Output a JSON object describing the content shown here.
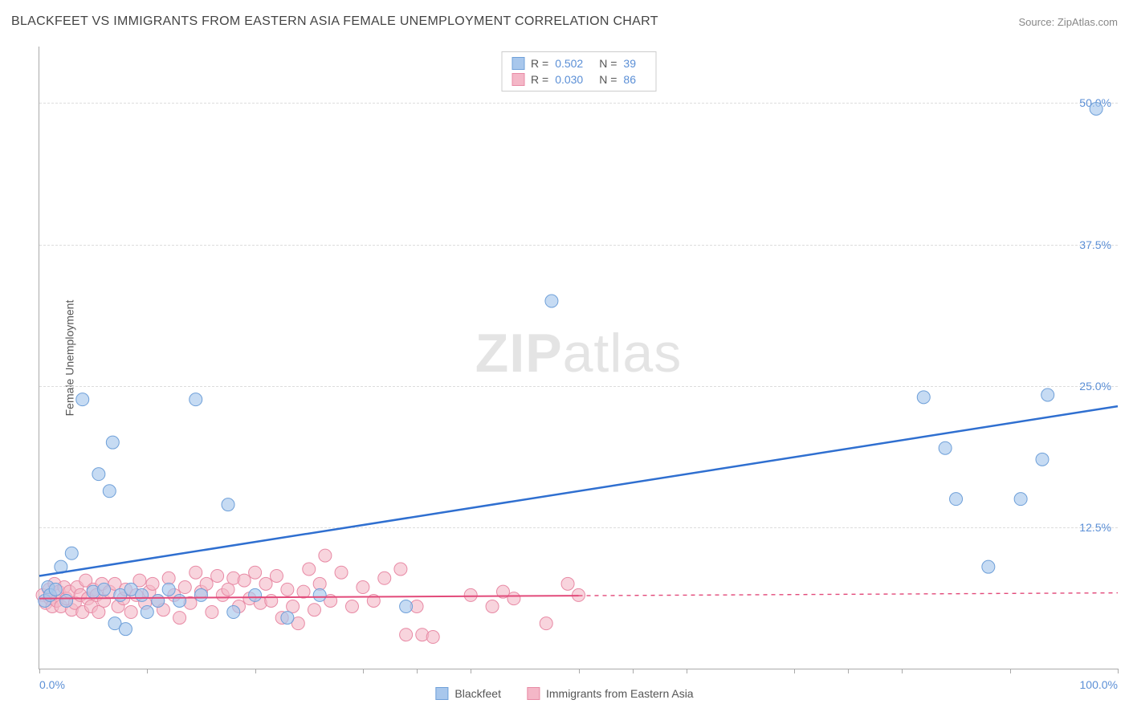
{
  "title": "BLACKFEET VS IMMIGRANTS FROM EASTERN ASIA FEMALE UNEMPLOYMENT CORRELATION CHART",
  "source": "Source: ZipAtlas.com",
  "ylabel": "Female Unemployment",
  "watermark_zip": "ZIP",
  "watermark_atlas": "atlas",
  "chart": {
    "type": "scatter",
    "background_color": "#ffffff",
    "grid_color": "#dddddd",
    "axis_color": "#aaaaaa",
    "xlim": [
      0,
      100
    ],
    "ylim": [
      0,
      55
    ],
    "xtick_positions": [
      0,
      10,
      20,
      30,
      35,
      40,
      50,
      55,
      60,
      70,
      75,
      80,
      90,
      100
    ],
    "xtick_labels": [
      {
        "pos": 0,
        "label": "0.0%"
      },
      {
        "pos": 100,
        "label": "100.0%"
      }
    ],
    "ytick_gridlines": [
      12.5,
      25.0,
      37.5,
      50.0
    ],
    "ytick_labels": [
      "12.5%",
      "25.0%",
      "37.5%",
      "50.0%"
    ],
    "tick_label_color": "#5b8fd6",
    "tick_label_fontsize": 14
  },
  "series": {
    "blue": {
      "name": "Blackfeet",
      "fill_color": "#a8c7ec",
      "fill_opacity": 0.65,
      "stroke_color": "#6fa0d9",
      "marker_radius": 8,
      "R_label": "R =",
      "R_value": "0.502",
      "N_label": "N =",
      "N_value": "39",
      "regression": {
        "x1": 0,
        "y1": 8.2,
        "x2": 100,
        "y2": 23.2,
        "color": "#2f6fd0",
        "width": 2.5,
        "dash_after_x": null
      },
      "points": [
        {
          "x": 0.5,
          "y": 6.0
        },
        {
          "x": 0.8,
          "y": 7.2
        },
        {
          "x": 1.0,
          "y": 6.5
        },
        {
          "x": 1.5,
          "y": 7.0
        },
        {
          "x": 2.0,
          "y": 9.0
        },
        {
          "x": 2.5,
          "y": 6.0
        },
        {
          "x": 3.0,
          "y": 10.2
        },
        {
          "x": 4.0,
          "y": 23.8
        },
        {
          "x": 5.0,
          "y": 6.8
        },
        {
          "x": 5.5,
          "y": 17.2
        },
        {
          "x": 6.0,
          "y": 7.0
        },
        {
          "x": 6.5,
          "y": 15.7
        },
        {
          "x": 6.8,
          "y": 20.0
        },
        {
          "x": 7.0,
          "y": 4.0
        },
        {
          "x": 7.5,
          "y": 6.5
        },
        {
          "x": 8.0,
          "y": 3.5
        },
        {
          "x": 8.5,
          "y": 7.0
        },
        {
          "x": 9.5,
          "y": 6.5
        },
        {
          "x": 10.0,
          "y": 5.0
        },
        {
          "x": 11.0,
          "y": 6.0
        },
        {
          "x": 12.0,
          "y": 7.0
        },
        {
          "x": 13.0,
          "y": 6.0
        },
        {
          "x": 14.5,
          "y": 23.8
        },
        {
          "x": 15.0,
          "y": 6.5
        },
        {
          "x": 17.5,
          "y": 14.5
        },
        {
          "x": 18.0,
          "y": 5.0
        },
        {
          "x": 20.0,
          "y": 6.5
        },
        {
          "x": 23.0,
          "y": 4.5
        },
        {
          "x": 26.0,
          "y": 6.5
        },
        {
          "x": 34.0,
          "y": 5.5
        },
        {
          "x": 47.5,
          "y": 32.5
        },
        {
          "x": 82.0,
          "y": 24.0
        },
        {
          "x": 84.0,
          "y": 19.5
        },
        {
          "x": 85.0,
          "y": 15.0
        },
        {
          "x": 88.0,
          "y": 9.0
        },
        {
          "x": 91.0,
          "y": 15.0
        },
        {
          "x": 93.0,
          "y": 18.5
        },
        {
          "x": 93.5,
          "y": 24.2
        },
        {
          "x": 98.0,
          "y": 49.5
        }
      ]
    },
    "pink": {
      "name": "Immigrants from Eastern Asia",
      "fill_color": "#f4b7c7",
      "fill_opacity": 0.6,
      "stroke_color": "#e88aa5",
      "marker_radius": 8,
      "R_label": "R =",
      "R_value": "0.030",
      "N_label": "N =",
      "N_value": "86",
      "regression": {
        "x1": 0,
        "y1": 6.2,
        "x2": 100,
        "y2": 6.7,
        "color": "#e24a7a",
        "width": 2,
        "dash_after_x": 50
      },
      "points": [
        {
          "x": 0.3,
          "y": 6.5
        },
        {
          "x": 0.6,
          "y": 5.8
        },
        {
          "x": 0.9,
          "y": 7.0
        },
        {
          "x": 1.0,
          "y": 6.2
        },
        {
          "x": 1.2,
          "y": 5.5
        },
        {
          "x": 1.4,
          "y": 7.5
        },
        {
          "x": 1.6,
          "y": 6.0
        },
        {
          "x": 1.8,
          "y": 6.8
        },
        {
          "x": 2.0,
          "y": 5.5
        },
        {
          "x": 2.3,
          "y": 7.2
        },
        {
          "x": 2.5,
          "y": 6.2
        },
        {
          "x": 2.8,
          "y": 6.8
        },
        {
          "x": 3.0,
          "y": 5.2
        },
        {
          "x": 3.3,
          "y": 5.8
        },
        {
          "x": 3.5,
          "y": 7.2
        },
        {
          "x": 3.8,
          "y": 6.5
        },
        {
          "x": 4.0,
          "y": 5.0
        },
        {
          "x": 4.3,
          "y": 7.8
        },
        {
          "x": 4.5,
          "y": 6.2
        },
        {
          "x": 4.8,
          "y": 5.5
        },
        {
          "x": 5.0,
          "y": 7.0
        },
        {
          "x": 5.3,
          "y": 6.5
        },
        {
          "x": 5.5,
          "y": 5.0
        },
        {
          "x": 5.8,
          "y": 7.5
        },
        {
          "x": 6.0,
          "y": 6.0
        },
        {
          "x": 6.5,
          "y": 6.8
        },
        {
          "x": 7.0,
          "y": 7.5
        },
        {
          "x": 7.3,
          "y": 5.5
        },
        {
          "x": 7.8,
          "y": 6.2
        },
        {
          "x": 8.0,
          "y": 7.0
        },
        {
          "x": 8.5,
          "y": 5.0
        },
        {
          "x": 9.0,
          "y": 6.5
        },
        {
          "x": 9.3,
          "y": 7.8
        },
        {
          "x": 9.8,
          "y": 5.8
        },
        {
          "x": 10.2,
          "y": 6.8
        },
        {
          "x": 10.5,
          "y": 7.5
        },
        {
          "x": 11.0,
          "y": 6.0
        },
        {
          "x": 11.5,
          "y": 5.2
        },
        {
          "x": 12.0,
          "y": 8.0
        },
        {
          "x": 12.5,
          "y": 6.5
        },
        {
          "x": 13.0,
          "y": 4.5
        },
        {
          "x": 13.5,
          "y": 7.2
        },
        {
          "x": 14.0,
          "y": 5.8
        },
        {
          "x": 14.5,
          "y": 8.5
        },
        {
          "x": 15.0,
          "y": 6.8
        },
        {
          "x": 15.5,
          "y": 7.5
        },
        {
          "x": 16.0,
          "y": 5.0
        },
        {
          "x": 16.5,
          "y": 8.2
        },
        {
          "x": 17.0,
          "y": 6.5
        },
        {
          "x": 17.5,
          "y": 7.0
        },
        {
          "x": 18.0,
          "y": 8.0
        },
        {
          "x": 18.5,
          "y": 5.5
        },
        {
          "x": 19.0,
          "y": 7.8
        },
        {
          "x": 19.5,
          "y": 6.2
        },
        {
          "x": 20.0,
          "y": 8.5
        },
        {
          "x": 20.5,
          "y": 5.8
        },
        {
          "x": 21.0,
          "y": 7.5
        },
        {
          "x": 21.5,
          "y": 6.0
        },
        {
          "x": 22.0,
          "y": 8.2
        },
        {
          "x": 22.5,
          "y": 4.5
        },
        {
          "x": 23.0,
          "y": 7.0
        },
        {
          "x": 23.5,
          "y": 5.5
        },
        {
          "x": 24.0,
          "y": 4.0
        },
        {
          "x": 24.5,
          "y": 6.8
        },
        {
          "x": 25.0,
          "y": 8.8
        },
        {
          "x": 25.5,
          "y": 5.2
        },
        {
          "x": 26.0,
          "y": 7.5
        },
        {
          "x": 26.5,
          "y": 10.0
        },
        {
          "x": 27.0,
          "y": 6.0
        },
        {
          "x": 28.0,
          "y": 8.5
        },
        {
          "x": 29.0,
          "y": 5.5
        },
        {
          "x": 30.0,
          "y": 7.2
        },
        {
          "x": 31.0,
          "y": 6.0
        },
        {
          "x": 32.0,
          "y": 8.0
        },
        {
          "x": 33.5,
          "y": 8.8
        },
        {
          "x": 34.0,
          "y": 3.0
        },
        {
          "x": 35.0,
          "y": 5.5
        },
        {
          "x": 35.5,
          "y": 3.0
        },
        {
          "x": 36.5,
          "y": 2.8
        },
        {
          "x": 40.0,
          "y": 6.5
        },
        {
          "x": 42.0,
          "y": 5.5
        },
        {
          "x": 43.0,
          "y": 6.8
        },
        {
          "x": 44.0,
          "y": 6.2
        },
        {
          "x": 47.0,
          "y": 4.0
        },
        {
          "x": 49.0,
          "y": 7.5
        },
        {
          "x": 50.0,
          "y": 6.5
        }
      ]
    }
  },
  "legend": {
    "blue_label": "Blackfeet",
    "pink_label": "Immigrants from Eastern Asia"
  }
}
